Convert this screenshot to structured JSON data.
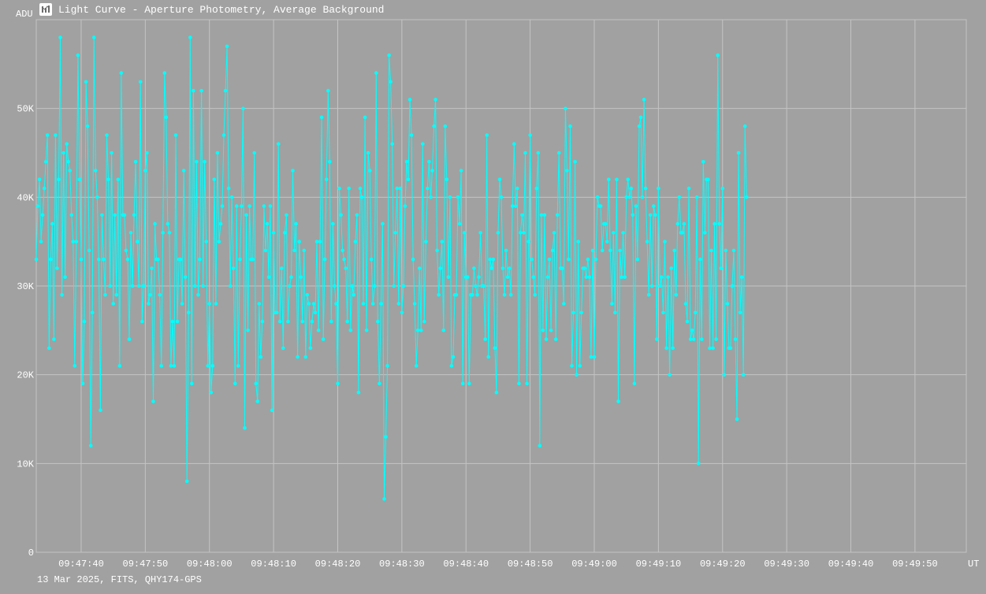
{
  "window": {
    "title": "Light Curve - Aperture Photometry, Average Background",
    "icon": "light-curve-app-icon"
  },
  "footer": {
    "text": "13 Mar 2025, FITS, QHY174-GPS"
  },
  "colors": {
    "background": "#a1a1a1",
    "grid": "#c4c4c4",
    "series": "#00ffff",
    "text": "#ffffff"
  },
  "chart_data": {
    "type": "line",
    "title": "Light Curve - Aperture Photometry, Average Background",
    "xlabel": "UT",
    "ylabel": "ADU",
    "ylim": [
      0,
      60000
    ],
    "xlim": [
      "09:47:33",
      "09:49:58"
    ],
    "y_ticks": [
      {
        "value": 0,
        "label": "0"
      },
      {
        "value": 10000,
        "label": "10K"
      },
      {
        "value": 20000,
        "label": "20K"
      },
      {
        "value": 30000,
        "label": "30K"
      },
      {
        "value": 40000,
        "label": "40K"
      },
      {
        "value": 50000,
        "label": "50K"
      }
    ],
    "x_ticks": [
      "09:47:40",
      "09:47:50",
      "09:48:00",
      "09:48:10",
      "09:48:20",
      "09:48:30",
      "09:48:40",
      "09:48:50",
      "09:49:00",
      "09:49:10",
      "09:49:20",
      "09:49:30",
      "09:49:40",
      "09:49:50"
    ],
    "grid": true,
    "legend": "none",
    "x_start": "09:47:33.0",
    "x_step_seconds": 0.25,
    "series": [
      {
        "values": [
          33000,
          39000,
          42000,
          35000,
          38000,
          41000,
          44000,
          47000,
          23000,
          33000,
          37000,
          24000,
          47000,
          32000,
          42000,
          58000,
          29000,
          45000,
          31000,
          46000,
          44000,
          43000,
          38000,
          35000,
          21000,
          35000,
          56000,
          42000,
          33000,
          19000,
          26000,
          53000,
          48000,
          34000,
          12000,
          27000,
          58000,
          43000,
          40000,
          33000,
          16000,
          38000,
          33000,
          29000,
          47000,
          42000,
          30000,
          45000,
          28000,
          38000,
          29000,
          42000,
          21000,
          54000,
          38000,
          38000,
          34000,
          33000,
          24000,
          36000,
          30000,
          38000,
          44000,
          35000,
          30000,
          53000,
          26000,
          30000,
          43000,
          45000,
          28000,
          29000,
          32000,
          17000,
          37000,
          33000,
          33000,
          29000,
          21000,
          36000,
          54000,
          49000,
          37000,
          36000,
          21000,
          26000,
          21000,
          47000,
          26000,
          33000,
          33000,
          28000,
          43000,
          31000,
          8000,
          27000,
          58000,
          19000,
          52000,
          30000,
          44000,
          29000,
          33000,
          52000,
          30000,
          44000,
          35000,
          21000,
          28000,
          18000,
          21000,
          42000,
          28000,
          45000,
          35000,
          37000,
          39000,
          47000,
          52000,
          57000,
          41000,
          30000,
          40000,
          32000,
          19000,
          39000,
          21000,
          33000,
          39000,
          50000,
          14000,
          38000,
          25000,
          39000,
          33000,
          33000,
          45000,
          19000,
          17000,
          28000,
          22000,
          26000,
          39000,
          34000,
          37000,
          31000,
          39000,
          16000,
          36000,
          27000,
          27000,
          46000,
          26000,
          32000,
          23000,
          36000,
          38000,
          26000,
          30000,
          31000,
          43000,
          34000,
          37000,
          22000,
          35000,
          31000,
          26000,
          34000,
          22000,
          29000,
          28000,
          23000,
          26000,
          28000,
          27000,
          35000,
          25000,
          35000,
          49000,
          24000,
          33000,
          42000,
          52000,
          44000,
          26000,
          37000,
          30000,
          28000,
          19000,
          41000,
          38000,
          34000,
          33000,
          32000,
          26000,
          41000,
          25000,
          30000,
          29000,
          35000,
          38000,
          18000,
          41000,
          40000,
          28000,
          49000,
          25000,
          45000,
          43000,
          33000,
          28000,
          30000,
          54000,
          26000,
          19000,
          28000,
          37000,
          6000,
          13000,
          21000,
          56000,
          53000,
          46000,
          30000,
          36000,
          41000,
          28000,
          41000,
          27000,
          30000,
          39000,
          44000,
          42000,
          51000,
          47000,
          33000,
          28000,
          21000,
          25000,
          32000,
          25000,
          46000,
          26000,
          35000,
          41000,
          44000,
          40000,
          43000,
          48000,
          51000,
          34000,
          29000,
          32000,
          35000,
          25000,
          48000,
          42000,
          31000,
          40000,
          21000,
          22000,
          29000,
          29000,
          40000,
          37000,
          43000,
          19000,
          36000,
          31000,
          31000,
          19000,
          29000,
          29000,
          32000,
          30000,
          29000,
          31000,
          36000,
          30000,
          30000,
          24000,
          47000,
          22000,
          33000,
          32000,
          33000,
          23000,
          18000,
          36000,
          42000,
          40000,
          32000,
          29000,
          34000,
          31000,
          32000,
          29000,
          39000,
          46000,
          39000,
          41000,
          19000,
          36000,
          38000,
          36000,
          45000,
          19000,
          35000,
          47000,
          33000,
          31000,
          29000,
          41000,
          45000,
          12000,
          38000,
          25000,
          38000,
          24000,
          31000,
          33000,
          25000,
          34000,
          36000,
          24000,
          38000,
          45000,
          32000,
          32000,
          28000,
          50000,
          43000,
          33000,
          48000,
          21000,
          27000,
          44000,
          20000,
          35000,
          21000,
          27000,
          32000,
          32000,
          31000,
          33000,
          31000,
          22000,
          34000,
          22000,
          33000,
          40000,
          39000,
          39000,
          34000,
          37000,
          37000,
          35000,
          42000,
          34000,
          28000,
          36000,
          27000,
          42000,
          17000,
          34000,
          31000,
          36000,
          31000,
          40000,
          42000,
          40000,
          41000,
          38000,
          19000,
          39000,
          33000,
          48000,
          49000,
          40000,
          51000,
          41000,
          35000,
          29000,
          38000,
          30000,
          39000,
          38000,
          24000,
          41000,
          30000,
          31000,
          27000,
          35000,
          23000,
          31000,
          20000,
          32000,
          23000,
          34000,
          29000,
          37000,
          40000,
          36000,
          36000,
          37000,
          28000,
          26000,
          41000,
          24000,
          25000,
          24000,
          27000,
          40000,
          10000,
          33000,
          24000,
          44000,
          36000,
          42000,
          42000,
          23000,
          34000,
          23000,
          37000,
          24000,
          56000,
          37000,
          32000,
          41000,
          20000,
          34000,
          28000,
          23000,
          23000,
          30000,
          34000,
          24000,
          15000,
          45000,
          27000,
          31000,
          20000,
          48000,
          40000
        ]
      }
    ]
  }
}
